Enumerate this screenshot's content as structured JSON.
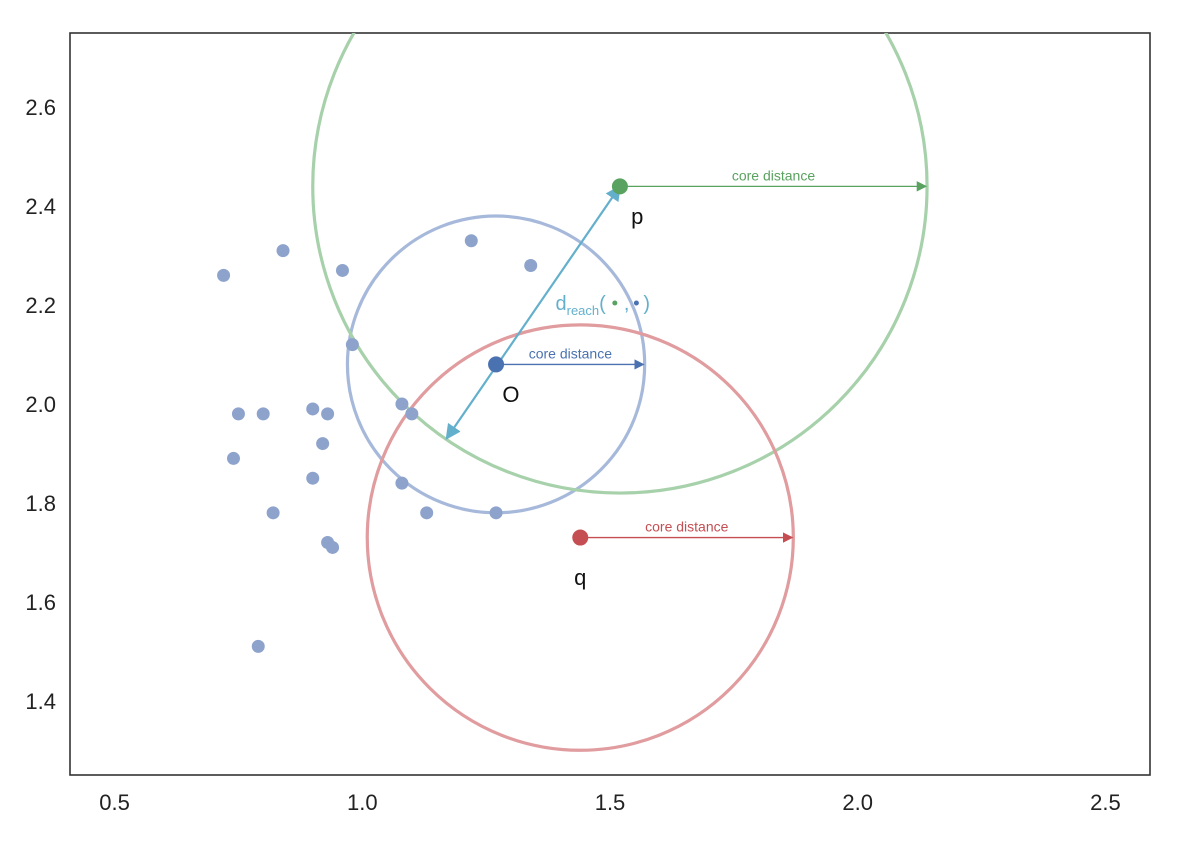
{
  "chart_data": {
    "type": "scatter",
    "xlim": [
      0.41,
      2.59
    ],
    "ylim": [
      1.25,
      2.75
    ],
    "x_ticks": [
      0.5,
      1.0,
      1.5,
      2.0,
      2.5
    ],
    "y_ticks": [
      1.4,
      1.6,
      1.8,
      2.0,
      2.2,
      2.4,
      2.6
    ],
    "x_tick_labels": [
      "0.5",
      "1.0",
      "1.5",
      "2.0",
      "2.5"
    ],
    "y_tick_labels": [
      "1.4",
      "1.6",
      "1.8",
      "2.0",
      "2.2",
      "2.4",
      "2.6"
    ],
    "grid": false,
    "background_points": {
      "color": "#8da3cc",
      "points": [
        [
          0.72,
          2.26
        ],
        [
          0.84,
          2.31
        ],
        [
          0.96,
          2.27
        ],
        [
          1.22,
          2.33
        ],
        [
          1.34,
          2.28
        ],
        [
          0.98,
          2.12
        ],
        [
          0.75,
          1.98
        ],
        [
          0.8,
          1.98
        ],
        [
          0.9,
          1.99
        ],
        [
          0.93,
          1.98
        ],
        [
          0.92,
          1.92
        ],
        [
          0.74,
          1.89
        ],
        [
          0.9,
          1.85
        ],
        [
          0.82,
          1.78
        ],
        [
          0.93,
          1.72
        ],
        [
          0.94,
          1.71
        ],
        [
          1.08,
          2.0
        ],
        [
          1.1,
          1.98
        ],
        [
          1.08,
          1.84
        ],
        [
          1.13,
          1.78
        ],
        [
          1.27,
          1.78
        ],
        [
          0.79,
          1.51
        ]
      ]
    },
    "special_points": [
      {
        "name": "O",
        "x": 1.27,
        "y": 2.08,
        "core_distance": 0.3,
        "color": "#4a72b0",
        "circle_color": "#a7b9db",
        "core_label": "core distance",
        "label_dx": 0.03,
        "label_dy": -0.06
      },
      {
        "name": "p",
        "x": 1.52,
        "y": 2.44,
        "core_distance": 0.62,
        "color": "#59a25f",
        "circle_color": "#a7d1aa",
        "core_label": "core distance",
        "label_dx": 0.035,
        "label_dy": -0.06
      },
      {
        "name": "q",
        "x": 1.44,
        "y": 1.73,
        "core_distance": 0.43,
        "color": "#c44e52",
        "circle_color": "#e09c9e",
        "core_label": "core distance",
        "label_dx": 0.0,
        "label_dy": -0.08
      }
    ],
    "reachability": {
      "from": [
        1.52,
        2.44
      ],
      "to": [
        1.17,
        1.93
      ],
      "color": "#64b0cc",
      "label_main": "d",
      "label_sub": "reach",
      "label_open": "(",
      "label_sep": ",",
      "label_close": ")",
      "dot1_color": "#59a25f",
      "dot2_color": "#4a72b0",
      "label_x": 1.39,
      "label_y": 2.19
    }
  }
}
